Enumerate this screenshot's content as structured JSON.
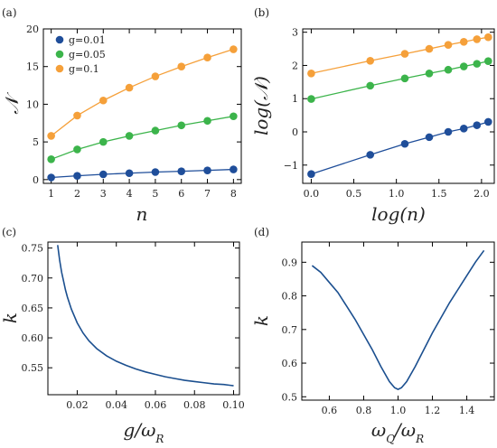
{
  "colors": {
    "blue": "#1f4e9a",
    "green": "#3cb44b",
    "orange": "#f5a03a",
    "line": "#1b4f8f"
  },
  "chart_data": [
    {
      "panel": "(a)",
      "type": "line",
      "xlabel": "n",
      "ylabel": "𝒩",
      "xlim": [
        0.7,
        8.3
      ],
      "ylim": [
        -0.5,
        20
      ],
      "xticks": [
        1,
        2,
        3,
        4,
        5,
        6,
        7,
        8
      ],
      "yticks": [
        0,
        5,
        10,
        15,
        20
      ],
      "x": [
        1,
        2,
        3,
        4,
        5,
        6,
        7,
        8
      ],
      "legend_position": "upper-left",
      "series": [
        {
          "name": "g=0.01",
          "color": "#1f4e9a",
          "values": [
            0.28,
            0.5,
            0.7,
            0.85,
            1.0,
            1.1,
            1.22,
            1.35
          ]
        },
        {
          "name": "g=0.05",
          "color": "#3cb44b",
          "values": [
            2.7,
            4.0,
            5.0,
            5.8,
            6.5,
            7.2,
            7.8,
            8.4
          ]
        },
        {
          "name": "g=0.1",
          "color": "#f5a03a",
          "values": [
            5.8,
            8.5,
            10.5,
            12.2,
            13.7,
            15.0,
            16.2,
            17.3
          ]
        }
      ]
    },
    {
      "panel": "(b)",
      "type": "line",
      "xlabel": "log(n)",
      "ylabel": "log(𝒩)",
      "xlim": [
        -0.1,
        2.15
      ],
      "ylim": [
        -1.55,
        3.1
      ],
      "xticks": [
        0.0,
        0.5,
        1.0,
        1.5,
        2.0
      ],
      "xticklabels": [
        "0.0",
        "0.5",
        "1.0",
        "1.5",
        "2.0"
      ],
      "yticks": [
        -1,
        0,
        1,
        2,
        3
      ],
      "yticklabels": [
        "−1",
        "0",
        "1",
        "2",
        "3"
      ],
      "x": [
        0,
        0.693,
        1.099,
        1.386,
        1.609,
        1.792,
        1.946,
        2.079
      ],
      "series": [
        {
          "name": "g=0.01",
          "color": "#1f4e9a",
          "values": [
            -1.27,
            -0.69,
            -0.36,
            -0.16,
            0.0,
            0.1,
            0.2,
            0.3
          ]
        },
        {
          "name": "g=0.05",
          "color": "#3cb44b",
          "values": [
            0.99,
            1.39,
            1.61,
            1.76,
            1.87,
            1.97,
            2.05,
            2.13
          ]
        },
        {
          "name": "g=0.1",
          "color": "#f5a03a",
          "values": [
            1.76,
            2.14,
            2.35,
            2.5,
            2.62,
            2.71,
            2.79,
            2.85
          ]
        }
      ]
    },
    {
      "panel": "(c)",
      "type": "line",
      "xlabel": "g/ω_R",
      "ylabel": "k",
      "xlim": [
        0.005,
        0.103
      ],
      "ylim": [
        0.505,
        0.76
      ],
      "xticks": [
        0.02,
        0.04,
        0.06,
        0.08,
        0.1
      ],
      "xticklabels": [
        "0.02",
        "0.04",
        "0.06",
        "0.08",
        "0.10"
      ],
      "yticks": [
        0.55,
        0.6,
        0.65,
        0.7,
        0.75
      ],
      "yticklabels": [
        "0.55",
        "0.60",
        "0.65",
        "0.70",
        "0.75"
      ],
      "series": [
        {
          "name": "",
          "x": [
            0.01,
            0.011,
            0.012,
            0.013,
            0.014,
            0.015,
            0.017,
            0.02,
            0.023,
            0.026,
            0.03,
            0.035,
            0.04,
            0.045,
            0.05,
            0.055,
            0.06,
            0.065,
            0.07,
            0.075,
            0.08,
            0.085,
            0.09,
            0.095,
            0.1
          ],
          "values": [
            0.755,
            0.73,
            0.71,
            0.695,
            0.68,
            0.668,
            0.648,
            0.625,
            0.608,
            0.595,
            0.582,
            0.57,
            0.561,
            0.554,
            0.548,
            0.543,
            0.539,
            0.535,
            0.532,
            0.529,
            0.527,
            0.525,
            0.523,
            0.522,
            0.52
          ]
        }
      ]
    },
    {
      "panel": "(d)",
      "type": "line",
      "xlabel": "ω_Q/ω_R",
      "ylabel": "k",
      "xlim": [
        0.44,
        1.56
      ],
      "ylim": [
        0.49,
        0.96
      ],
      "xticks": [
        0.6,
        0.8,
        1.0,
        1.2,
        1.4
      ],
      "xticklabels": [
        "0.6",
        "0.8",
        "1.0",
        "1.2",
        "1.4"
      ],
      "yticks": [
        0.5,
        0.6,
        0.7,
        0.8,
        0.9
      ],
      "yticklabels": [
        "0.5",
        "0.6",
        "0.7",
        "0.8",
        "0.9"
      ],
      "series": [
        {
          "name": "",
          "x": [
            0.5,
            0.55,
            0.6,
            0.65,
            0.7,
            0.75,
            0.8,
            0.85,
            0.9,
            0.95,
            0.98,
            1.0,
            1.02,
            1.05,
            1.1,
            1.15,
            1.2,
            1.25,
            1.3,
            1.35,
            1.4,
            1.45,
            1.5
          ],
          "values": [
            0.89,
            0.87,
            0.84,
            0.81,
            0.77,
            0.73,
            0.685,
            0.64,
            0.59,
            0.545,
            0.527,
            0.522,
            0.527,
            0.545,
            0.59,
            0.64,
            0.69,
            0.735,
            0.78,
            0.82,
            0.86,
            0.9,
            0.935
          ]
        }
      ]
    }
  ]
}
